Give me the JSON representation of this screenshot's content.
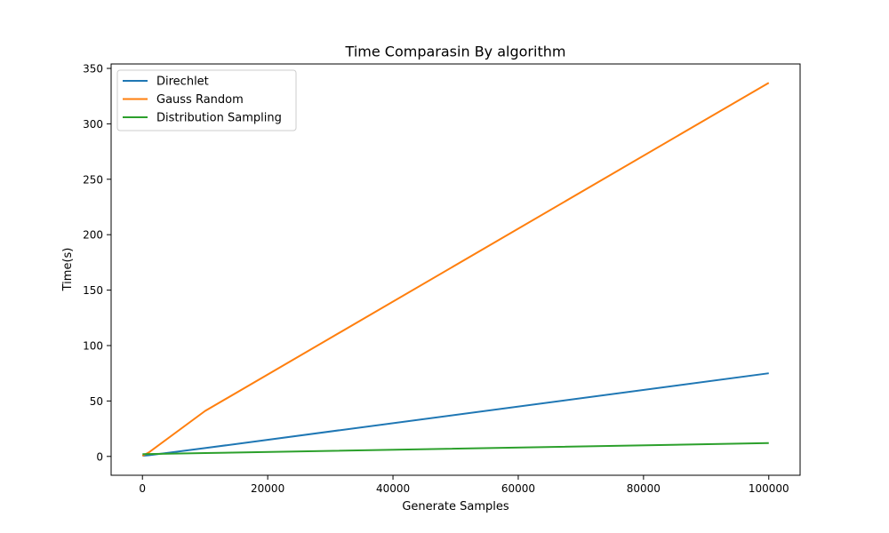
{
  "chart_data": {
    "type": "line",
    "title": "Time Comparasin By algorithm",
    "xlabel": "Generate Samples",
    "ylabel": "Time(s)",
    "xlim": [
      -5000,
      105000
    ],
    "ylim": [
      -17,
      354
    ],
    "xticks": [
      0,
      20000,
      40000,
      60000,
      80000,
      100000
    ],
    "yticks": [
      0,
      50,
      100,
      150,
      200,
      250,
      300,
      350
    ],
    "grid": false,
    "legend_position": "top-left",
    "series": [
      {
        "name": "Direchlet",
        "color": "#1f77b4",
        "x": [
          10,
          100,
          1000,
          10000,
          100000
        ],
        "y": [
          0.5,
          0.6,
          1.0,
          7.5,
          75
        ]
      },
      {
        "name": "Gauss Random",
        "color": "#ff7f0e",
        "x": [
          10,
          100,
          1000,
          10000,
          100000
        ],
        "y": [
          0.5,
          0.8,
          3.5,
          41,
          337
        ]
      },
      {
        "name": "Distribution Sampling",
        "color": "#2ca02c",
        "x": [
          10,
          100,
          1000,
          10000,
          100000
        ],
        "y": [
          2.0,
          2.0,
          2.1,
          3.0,
          12
        ]
      }
    ]
  }
}
